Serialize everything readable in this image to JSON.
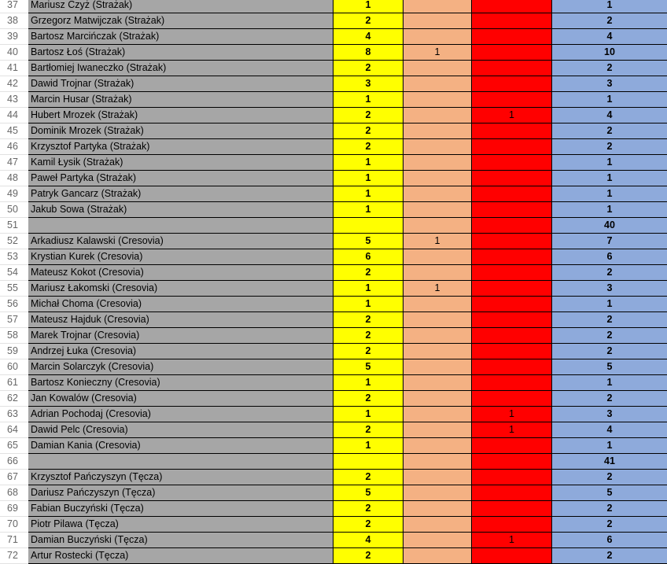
{
  "colors": {
    "gray": "#a6a6a6",
    "yellow": "#ffff00",
    "salmon": "#f4b183",
    "red": "#ff0000",
    "blue": "#8eaadb"
  },
  "rows": [
    {
      "n": "37",
      "name": "Mariusz Czyż (Strażak)",
      "a": "1",
      "b": "",
      "c": "",
      "t": "1"
    },
    {
      "n": "38",
      "name": "Grzegorz Matwijczak (Strażak)",
      "a": "2",
      "b": "",
      "c": "",
      "t": "2"
    },
    {
      "n": "39",
      "name": "Bartosz Marcińczak (Strażak)",
      "a": "4",
      "b": "",
      "c": "",
      "t": "4"
    },
    {
      "n": "40",
      "name": "Bartosz Łoś (Strażak)",
      "a": "8",
      "b": "1",
      "c": "",
      "t": "10"
    },
    {
      "n": "41",
      "name": "Bartłomiej Iwaneczko (Strażak)",
      "a": "2",
      "b": "",
      "c": "",
      "t": "2"
    },
    {
      "n": "42",
      "name": "Dawid Trojnar (Strażak)",
      "a": "3",
      "b": "",
      "c": "",
      "t": "3"
    },
    {
      "n": "43",
      "name": "Marcin Husar (Strażak)",
      "a": "1",
      "b": "",
      "c": "",
      "t": "1"
    },
    {
      "n": "44",
      "name": "Hubert Mrozek (Strażak)",
      "a": "2",
      "b": "",
      "c": "1",
      "t": "4"
    },
    {
      "n": "45",
      "name": "Dominik Mrozek (Strażak)",
      "a": "2",
      "b": "",
      "c": "",
      "t": "2"
    },
    {
      "n": "46",
      "name": "Krzysztof Partyka (Strażak)",
      "a": "2",
      "b": "",
      "c": "",
      "t": "2"
    },
    {
      "n": "47",
      "name": "Kamil Łysik (Strażak)",
      "a": "1",
      "b": "",
      "c": "",
      "t": "1"
    },
    {
      "n": "48",
      "name": "Paweł Partyka (Strażak)",
      "a": "1",
      "b": "",
      "c": "",
      "t": "1"
    },
    {
      "n": "49",
      "name": "Patryk Gancarz (Strażak)",
      "a": "1",
      "b": "",
      "c": "",
      "t": "1"
    },
    {
      "n": "50",
      "name": "Jakub Sowa (Strażak)",
      "a": "1",
      "b": "",
      "c": "",
      "t": "1"
    },
    {
      "n": "51",
      "name": "",
      "a": "",
      "b": "",
      "c": "",
      "t": "40"
    },
    {
      "n": "52",
      "name": "Arkadiusz Kalawski (Cresovia)",
      "a": "5",
      "b": "1",
      "c": "",
      "t": "7"
    },
    {
      "n": "53",
      "name": "Krystian Kurek (Cresovia)",
      "a": "6",
      "b": "",
      "c": "",
      "t": "6"
    },
    {
      "n": "54",
      "name": "Mateusz Kokot (Cresovia)",
      "a": "2",
      "b": "",
      "c": "",
      "t": "2"
    },
    {
      "n": "55",
      "name": "Mariusz Łakomski (Cresovia)",
      "a": "1",
      "b": "1",
      "c": "",
      "t": "3"
    },
    {
      "n": "56",
      "name": "Michał Choma (Cresovia)",
      "a": "1",
      "b": "",
      "c": "",
      "t": "1"
    },
    {
      "n": "57",
      "name": "Mateusz Hajduk (Cresovia)",
      "a": "2",
      "b": "",
      "c": "",
      "t": "2"
    },
    {
      "n": "58",
      "name": "Marek Trojnar (Cresovia)",
      "a": "2",
      "b": "",
      "c": "",
      "t": "2"
    },
    {
      "n": "59",
      "name": "Andrzej Łuka (Cresovia)",
      "a": "2",
      "b": "",
      "c": "",
      "t": "2"
    },
    {
      "n": "60",
      "name": "Marcin Solarczyk (Cresovia)",
      "a": "5",
      "b": "",
      "c": "",
      "t": "5"
    },
    {
      "n": "61",
      "name": "Bartosz Konieczny (Cresovia)",
      "a": "1",
      "b": "",
      "c": "",
      "t": "1"
    },
    {
      "n": "62",
      "name": "Jan Kowalów (Cresovia)",
      "a": "2",
      "b": "",
      "c": "",
      "t": "2"
    },
    {
      "n": "63",
      "name": "Adrian Pochodaj (Cresovia)",
      "a": "1",
      "b": "",
      "c": "1",
      "t": "3"
    },
    {
      "n": "64",
      "name": "Dawid Pelc (Cresovia)",
      "a": "2",
      "b": "",
      "c": "1",
      "t": "4"
    },
    {
      "n": "65",
      "name": "Damian Kania (Cresovia)",
      "a": "1",
      "b": "",
      "c": "",
      "t": "1"
    },
    {
      "n": "66",
      "name": "",
      "a": "",
      "b": "",
      "c": "",
      "t": "41"
    },
    {
      "n": "67",
      "name": "Krzysztof Pańczyszyn (Tęcza)",
      "a": "2",
      "b": "",
      "c": "",
      "t": "2"
    },
    {
      "n": "68",
      "name": "Dariusz Pańczyszyn (Tęcza)",
      "a": "5",
      "b": "",
      "c": "",
      "t": "5"
    },
    {
      "n": "69",
      "name": "Fabian Buczyński (Tęcza)",
      "a": "2",
      "b": "",
      "c": "",
      "t": "2"
    },
    {
      "n": "70",
      "name": "Piotr Pilawa (Tęcza)",
      "a": "2",
      "b": "",
      "c": "",
      "t": "2"
    },
    {
      "n": "71",
      "name": "Damian Buczyński (Tęcza)",
      "a": "4",
      "b": "",
      "c": "1",
      "t": "6"
    },
    {
      "n": "72",
      "name": "Artur Rostecki (Tęcza)",
      "a": "2",
      "b": "",
      "c": "",
      "t": "2"
    }
  ]
}
